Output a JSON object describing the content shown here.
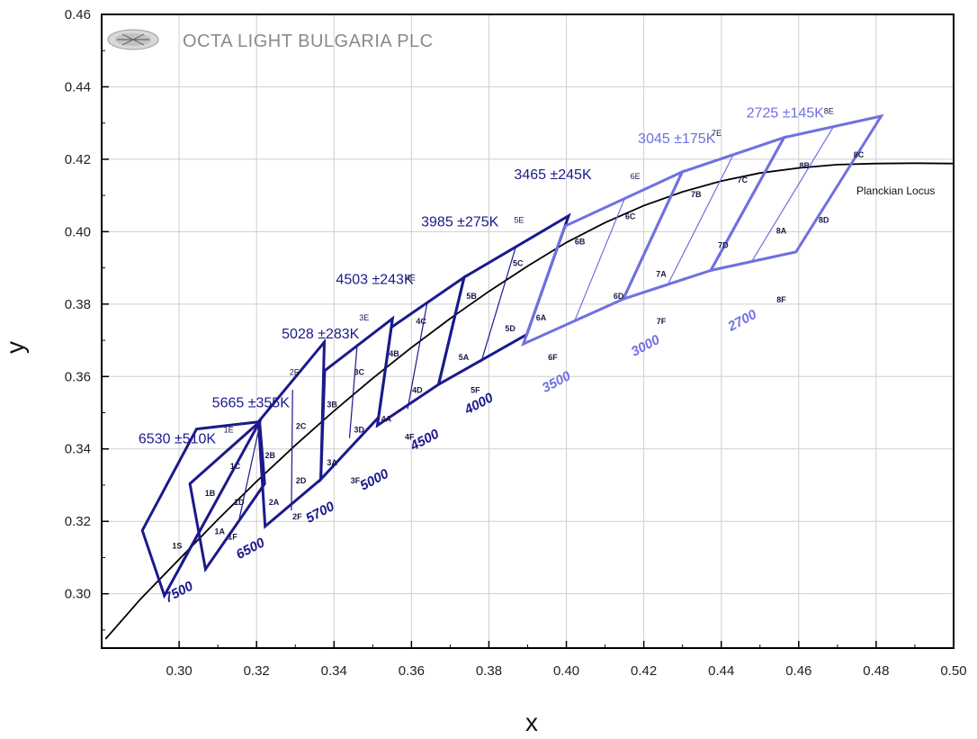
{
  "chart_data": {
    "type": "scatter",
    "title": "",
    "xlabel": "x",
    "ylabel": "y",
    "xlim": [
      0.28,
      0.5
    ],
    "ylim": [
      0.285,
      0.46
    ],
    "x_ticks": [
      0.3,
      0.32,
      0.34,
      0.36,
      0.38,
      0.4,
      0.42,
      0.44,
      0.46,
      0.48,
      0.5
    ],
    "y_ticks": [
      0.3,
      0.32,
      0.34,
      0.36,
      0.38,
      0.4,
      0.42,
      0.44,
      0.46
    ],
    "x_tick_labels": [
      "0.30",
      "0.32",
      "0.34",
      "0.36",
      "0.38",
      "0.40",
      "0.42",
      "0.44",
      "0.46",
      "0.48",
      "0.50"
    ],
    "y_tick_labels": [
      "0.30",
      "0.32",
      "0.34",
      "0.36",
      "0.38",
      "0.40",
      "0.42",
      "0.44",
      "0.46"
    ],
    "grid": true,
    "colors": {
      "dark": "#1a1a8c",
      "light": "#7070e0",
      "locus": "#000000",
      "grid": "#cfcfcf"
    },
    "planckian_locus": {
      "label": "Planckian Locus",
      "points": [
        [
          0.281,
          0.2875
        ],
        [
          0.29,
          0.2985
        ],
        [
          0.3,
          0.3095
        ],
        [
          0.31,
          0.3205
        ],
        [
          0.32,
          0.331
        ],
        [
          0.33,
          0.341
        ],
        [
          0.34,
          0.3505
        ],
        [
          0.35,
          0.3595
        ],
        [
          0.36,
          0.368
        ],
        [
          0.37,
          0.376
        ],
        [
          0.38,
          0.3835
        ],
        [
          0.39,
          0.3905
        ],
        [
          0.4,
          0.397
        ],
        [
          0.41,
          0.4025
        ],
        [
          0.42,
          0.4072
        ],
        [
          0.43,
          0.411
        ],
        [
          0.44,
          0.414
        ],
        [
          0.45,
          0.4162
        ],
        [
          0.46,
          0.4176
        ],
        [
          0.47,
          0.4185
        ],
        [
          0.48,
          0.4188
        ],
        [
          0.49,
          0.4189
        ],
        [
          0.5,
          0.4188
        ]
      ]
    },
    "cct_ranges": [
      {
        "text": "6530",
        "tol": "±510K",
        "x": 0.2895,
        "y": 0.3415,
        "color": "dark"
      },
      {
        "text": "5665",
        "tol": "±355K",
        "x": 0.3085,
        "y": 0.3515,
        "color": "dark"
      },
      {
        "text": "5028",
        "tol": "±283K",
        "x": 0.3265,
        "y": 0.3705,
        "color": "dark"
      },
      {
        "text": "4503",
        "tol": "±243K",
        "x": 0.3405,
        "y": 0.3855,
        "color": "dark"
      },
      {
        "text": "3985",
        "tol": "±275K",
        "x": 0.3625,
        "y": 0.4015,
        "color": "dark"
      },
      {
        "text": "3465",
        "tol": "±245K",
        "x": 0.3865,
        "y": 0.4145,
        "color": "dark"
      },
      {
        "text": "3045",
        "tol": "±175K",
        "x": 0.4185,
        "y": 0.4245,
        "color": "light"
      },
      {
        "text": "2725",
        "tol": "±145K",
        "x": 0.4465,
        "y": 0.4315,
        "color": "light"
      }
    ],
    "cct_superscripts": [
      {
        "text": "1E",
        "x": 0.3115,
        "y": 0.3445
      },
      {
        "text": "2E",
        "x": 0.3285,
        "y": 0.3605
      },
      {
        "text": "3E",
        "x": 0.3465,
        "y": 0.3755
      },
      {
        "text": "4E",
        "x": 0.3585,
        "y": 0.3865
      },
      {
        "text": "5E",
        "x": 0.3865,
        "y": 0.4025
      },
      {
        "text": "6E",
        "x": 0.4165,
        "y": 0.4145
      },
      {
        "text": "7E",
        "x": 0.4375,
        "y": 0.4265
      },
      {
        "text": "8E",
        "x": 0.4665,
        "y": 0.4325
      }
    ],
    "nominal_cct": [
      {
        "text": "7500",
        "x": 0.297,
        "y": 0.2975,
        "color": "dark"
      },
      {
        "text": "6500",
        "x": 0.3155,
        "y": 0.3095,
        "color": "dark"
      },
      {
        "text": "5700",
        "x": 0.3335,
        "y": 0.3195,
        "color": "dark"
      },
      {
        "text": "5000",
        "x": 0.3475,
        "y": 0.3285,
        "color": "dark"
      },
      {
        "text": "4500",
        "x": 0.3605,
        "y": 0.3395,
        "color": "dark"
      },
      {
        "text": "4000",
        "x": 0.3745,
        "y": 0.3495,
        "color": "dark"
      },
      {
        "text": "3500",
        "x": 0.3945,
        "y": 0.3555,
        "color": "light"
      },
      {
        "text": "3000",
        "x": 0.4175,
        "y": 0.3655,
        "color": "light"
      },
      {
        "text": "2700",
        "x": 0.4425,
        "y": 0.3725,
        "color": "light"
      }
    ],
    "bins": [
      {
        "label": "1S",
        "x": 0.2995,
        "y": 0.3125
      },
      {
        "label": "1A",
        "x": 0.3105,
        "y": 0.3165
      },
      {
        "label": "1B",
        "x": 0.308,
        "y": 0.327
      },
      {
        "label": "1C",
        "x": 0.3145,
        "y": 0.3345
      },
      {
        "label": "1D",
        "x": 0.3155,
        "y": 0.3245
      },
      {
        "label": "1F",
        "x": 0.3138,
        "y": 0.315
      },
      {
        "label": "2A",
        "x": 0.3245,
        "y": 0.3245
      },
      {
        "label": "2B",
        "x": 0.3235,
        "y": 0.3375
      },
      {
        "label": "2C",
        "x": 0.3315,
        "y": 0.3455
      },
      {
        "label": "2D",
        "x": 0.3315,
        "y": 0.3305
      },
      {
        "label": "2F",
        "x": 0.3305,
        "y": 0.3205
      },
      {
        "label": "3A",
        "x": 0.3395,
        "y": 0.3355
      },
      {
        "label": "3B",
        "x": 0.3395,
        "y": 0.3515
      },
      {
        "label": "3C",
        "x": 0.3465,
        "y": 0.3605
      },
      {
        "label": "3D",
        "x": 0.3465,
        "y": 0.3445
      },
      {
        "label": "3F",
        "x": 0.3455,
        "y": 0.3305
      },
      {
        "label": "4A",
        "x": 0.3535,
        "y": 0.3475
      },
      {
        "label": "4B",
        "x": 0.3555,
        "y": 0.3655
      },
      {
        "label": "4C",
        "x": 0.3625,
        "y": 0.3745
      },
      {
        "label": "4D",
        "x": 0.3615,
        "y": 0.3555
      },
      {
        "label": "4F",
        "x": 0.3595,
        "y": 0.3425
      },
      {
        "label": "5A",
        "x": 0.3735,
        "y": 0.3645
      },
      {
        "label": "5B",
        "x": 0.3755,
        "y": 0.3815
      },
      {
        "label": "5C",
        "x": 0.3875,
        "y": 0.3905
      },
      {
        "label": "5D",
        "x": 0.3855,
        "y": 0.3725
      },
      {
        "label": "5F",
        "x": 0.3765,
        "y": 0.3555
      },
      {
        "label": "6A",
        "x": 0.3935,
        "y": 0.3755
      },
      {
        "label": "6B",
        "x": 0.4035,
        "y": 0.3965
      },
      {
        "label": "6C",
        "x": 0.4165,
        "y": 0.4035
      },
      {
        "label": "6D",
        "x": 0.4135,
        "y": 0.3815
      },
      {
        "label": "6F",
        "x": 0.3965,
        "y": 0.3645
      },
      {
        "label": "7A",
        "x": 0.4245,
        "y": 0.3875
      },
      {
        "label": "7B",
        "x": 0.4335,
        "y": 0.4095
      },
      {
        "label": "7C",
        "x": 0.4455,
        "y": 0.4135
      },
      {
        "label": "7D",
        "x": 0.4405,
        "y": 0.3955
      },
      {
        "label": "7F",
        "x": 0.4245,
        "y": 0.3745
      },
      {
        "label": "8A",
        "x": 0.4555,
        "y": 0.3995
      },
      {
        "label": "8B",
        "x": 0.4615,
        "y": 0.4175
      },
      {
        "label": "8C",
        "x": 0.4755,
        "y": 0.4205
      },
      {
        "label": "8D",
        "x": 0.4665,
        "y": 0.4025
      },
      {
        "label": "8F",
        "x": 0.4555,
        "y": 0.3805
      }
    ],
    "quadrangles": [
      {
        "name": "7500K",
        "color": "dark",
        "corners": [
          [
            0.2905,
            0.3175
          ],
          [
            0.3045,
            0.3455
          ],
          [
            0.3208,
            0.3475
          ],
          [
            0.2962,
            0.2995
          ]
        ],
        "divider": [
          [
            0.3005,
            0.3085
          ],
          [
            0.314,
            0.3345
          ]
        ],
        "midline": [
          [
            0.3115,
            0.3195
          ],
          [
            0.3062,
            0.3205
          ]
        ]
      },
      {
        "name": "6500K",
        "color": "dark",
        "corners": [
          [
            0.3028,
            0.3304
          ],
          [
            0.3208,
            0.3475
          ],
          [
            0.3221,
            0.3304
          ],
          [
            0.3068,
            0.3068
          ]
        ],
        "divider": [
          [
            0.3155,
            0.3205
          ],
          [
            0.3205,
            0.345
          ]
        ],
        "midline": []
      },
      {
        "name": "5700K",
        "color": "dark",
        "corners": [
          [
            0.3205,
            0.3475
          ],
          [
            0.3375,
            0.3695
          ],
          [
            0.3366,
            0.3316
          ],
          [
            0.3222,
            0.3186
          ]
        ],
        "divider": [
          [
            0.329,
            0.323
          ],
          [
            0.3293,
            0.3563
          ]
        ],
        "midline": []
      },
      {
        "name": "5000K",
        "color": "dark",
        "corners": [
          [
            0.3376,
            0.3616
          ],
          [
            0.3551,
            0.376
          ],
          [
            0.3515,
            0.3487
          ],
          [
            0.3366,
            0.3316
          ]
        ],
        "divider": [
          [
            0.344,
            0.343
          ],
          [
            0.346,
            0.369
          ]
        ],
        "midline": []
      },
      {
        "name": "4500K",
        "color": "dark",
        "corners": [
          [
            0.3548,
            0.3736
          ],
          [
            0.3736,
            0.3874
          ],
          [
            0.367,
            0.3578
          ],
          [
            0.3512,
            0.3465
          ]
        ],
        "divider": [
          [
            0.359,
            0.351
          ],
          [
            0.364,
            0.38
          ]
        ],
        "midline": []
      },
      {
        "name": "4000K",
        "color": "dark",
        "corners": [
          [
            0.3736,
            0.3874
          ],
          [
            0.4006,
            0.4044
          ],
          [
            0.3898,
            0.3716
          ],
          [
            0.367,
            0.3578
          ]
        ],
        "divider": [
          [
            0.378,
            0.364
          ],
          [
            0.387,
            0.396
          ]
        ],
        "midline": []
      },
      {
        "name": "3500K",
        "color": "light",
        "corners": [
          [
            0.3996,
            0.4015
          ],
          [
            0.4299,
            0.4165
          ],
          [
            0.4147,
            0.3814
          ],
          [
            0.3889,
            0.369
          ]
        ],
        "divider": [
          [
            0.402,
            0.375
          ],
          [
            0.415,
            0.409
          ]
        ],
        "midline": []
      },
      {
        "name": "3000K",
        "color": "light",
        "corners": [
          [
            0.4299,
            0.4165
          ],
          [
            0.4562,
            0.426
          ],
          [
            0.4373,
            0.3893
          ],
          [
            0.4147,
            0.3814
          ]
        ],
        "divider": [
          [
            0.426,
            0.385
          ],
          [
            0.443,
            0.421
          ]
        ],
        "midline": []
      },
      {
        "name": "2700K",
        "color": "light",
        "corners": [
          [
            0.4562,
            0.426
          ],
          [
            0.4813,
            0.4319
          ],
          [
            0.4593,
            0.3944
          ],
          [
            0.4373,
            0.3893
          ]
        ],
        "divider": [
          [
            0.448,
            0.392
          ],
          [
            0.469,
            0.429
          ]
        ],
        "midline": []
      }
    ]
  },
  "logo": {
    "text": "OCTA LIGHT BULGARIA PLC",
    "icon": "octa-light-logo-icon"
  }
}
